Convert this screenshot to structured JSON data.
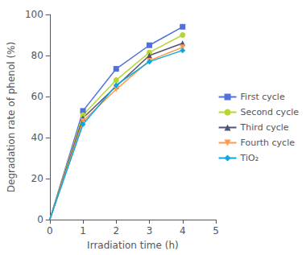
{
  "chart_data": {
    "type": "line",
    "xlabel": "Irradiation time (h)",
    "ylabel": "Degradation rate of phenol (%)",
    "x": [
      0,
      1,
      2,
      3,
      4
    ],
    "series": [
      {
        "name": "First cycle",
        "values": [
          0,
          53,
          73.5,
          85,
          94
        ],
        "marker": "square"
      },
      {
        "name": "Second cycle",
        "values": [
          0,
          51,
          68,
          81.5,
          90
        ],
        "marker": "circle"
      },
      {
        "name": "Third cycle",
        "values": [
          0,
          49.5,
          65,
          80,
          86
        ],
        "marker": "triangle-up"
      },
      {
        "name": "Fourth cycle",
        "values": [
          0,
          48,
          63.5,
          77.5,
          84
        ],
        "marker": "triangle-down"
      },
      {
        "name": "TiO₂",
        "values": [
          0,
          46.5,
          65.5,
          77,
          82.5
        ],
        "marker": "diamond"
      }
    ],
    "xlim": [
      0,
      5
    ],
    "ylim": [
      0,
      100
    ],
    "xticks": [
      0,
      1,
      2,
      3,
      4,
      5
    ],
    "yticks": [
      0,
      20,
      40,
      60,
      80,
      100
    ],
    "grid": false,
    "legend": "right"
  }
}
